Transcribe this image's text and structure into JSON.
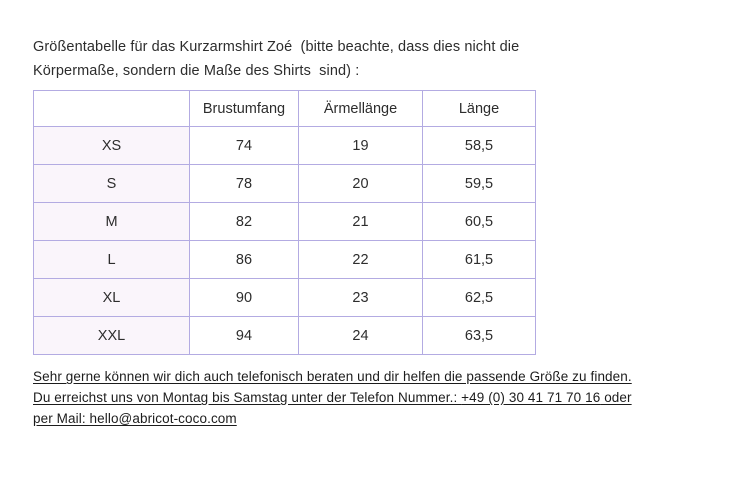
{
  "intro": {
    "line1": "Größentabelle für das Kurzarmshirt Zoé  (bitte beachte, dass dies nicht die",
    "line2": "Körpermaße, sondern die Maße des Shirts  sind) :"
  },
  "size_table": {
    "headers": [
      "",
      "Brustumfang",
      "Ärmellänge",
      "Länge"
    ],
    "rows": [
      [
        "XS",
        "74",
        "19",
        "58,5"
      ],
      [
        "S",
        "78",
        "20",
        "59,5"
      ],
      [
        "M",
        "82",
        "21",
        "60,5"
      ],
      [
        "L",
        "86",
        "22",
        "61,5"
      ],
      [
        "XL",
        "90",
        "23",
        "62,5"
      ],
      [
        "XXL",
        "94",
        "24",
        "63,5"
      ]
    ]
  },
  "footer": {
    "line1": "Sehr gerne können wir dich auch telefonisch beraten und dir helfen die passende Größe zu finden.",
    "line2_prefix": "Du erreichst uns von Montag bis Samstag unter der Telefon Nummer.: ",
    "phone": "+49 (0) 30 41 71 70 16",
    "line2_suffix": " oder",
    "line3_prefix": "per Mail: ",
    "email": "hello@abricot-coco.com"
  },
  "colors": {
    "table_border": "#b3abe2",
    "size_column_bg": "#faf5fb",
    "text": "#2d2d2d"
  }
}
